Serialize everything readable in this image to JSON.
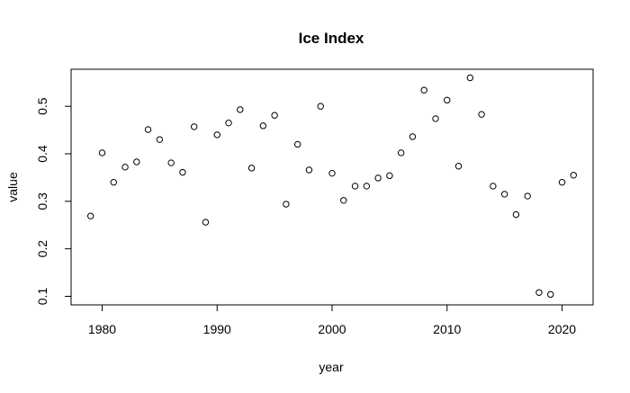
{
  "chart_data": {
    "type": "scatter",
    "title": "Ice Index",
    "xlabel": "year",
    "ylabel": "value",
    "xlim": [
      1977.3,
      2022.7
    ],
    "ylim": [
      0.082,
      0.578
    ],
    "xticks": [
      1980,
      1990,
      2000,
      2010,
      2020
    ],
    "yticks": [
      0.1,
      0.2,
      0.3,
      0.4,
      0.5
    ],
    "xtick_labels": [
      "1980",
      "1990",
      "2000",
      "2010",
      "2020"
    ],
    "ytick_labels": [
      "0.1",
      "0.2",
      "0.3",
      "0.4",
      "0.5"
    ],
    "grid": false,
    "legend": "none",
    "x": [
      1979,
      1980,
      1981,
      1982,
      1983,
      1984,
      1985,
      1986,
      1987,
      1988,
      1989,
      1990,
      1991,
      1992,
      1993,
      1994,
      1995,
      1996,
      1997,
      1998,
      1999,
      2000,
      2001,
      2002,
      2003,
      2004,
      2005,
      2006,
      2007,
      2008,
      2009,
      2010,
      2011,
      2012,
      2013,
      2014,
      2015,
      2016,
      2017,
      2018,
      2019,
      2020,
      2021
    ],
    "y": [
      0.269,
      0.402,
      0.34,
      0.372,
      0.383,
      0.451,
      0.43,
      0.381,
      0.361,
      0.457,
      0.256,
      0.44,
      0.465,
      0.493,
      0.37,
      0.459,
      0.481,
      0.294,
      0.42,
      0.366,
      0.5,
      0.359,
      0.302,
      0.332,
      0.332,
      0.349,
      0.354,
      0.402,
      0.436,
      0.534,
      0.474,
      0.513,
      0.374,
      0.56,
      0.483,
      0.332,
      0.315,
      0.272,
      0.311,
      0.108,
      0.104,
      0.34,
      0.355
    ]
  }
}
